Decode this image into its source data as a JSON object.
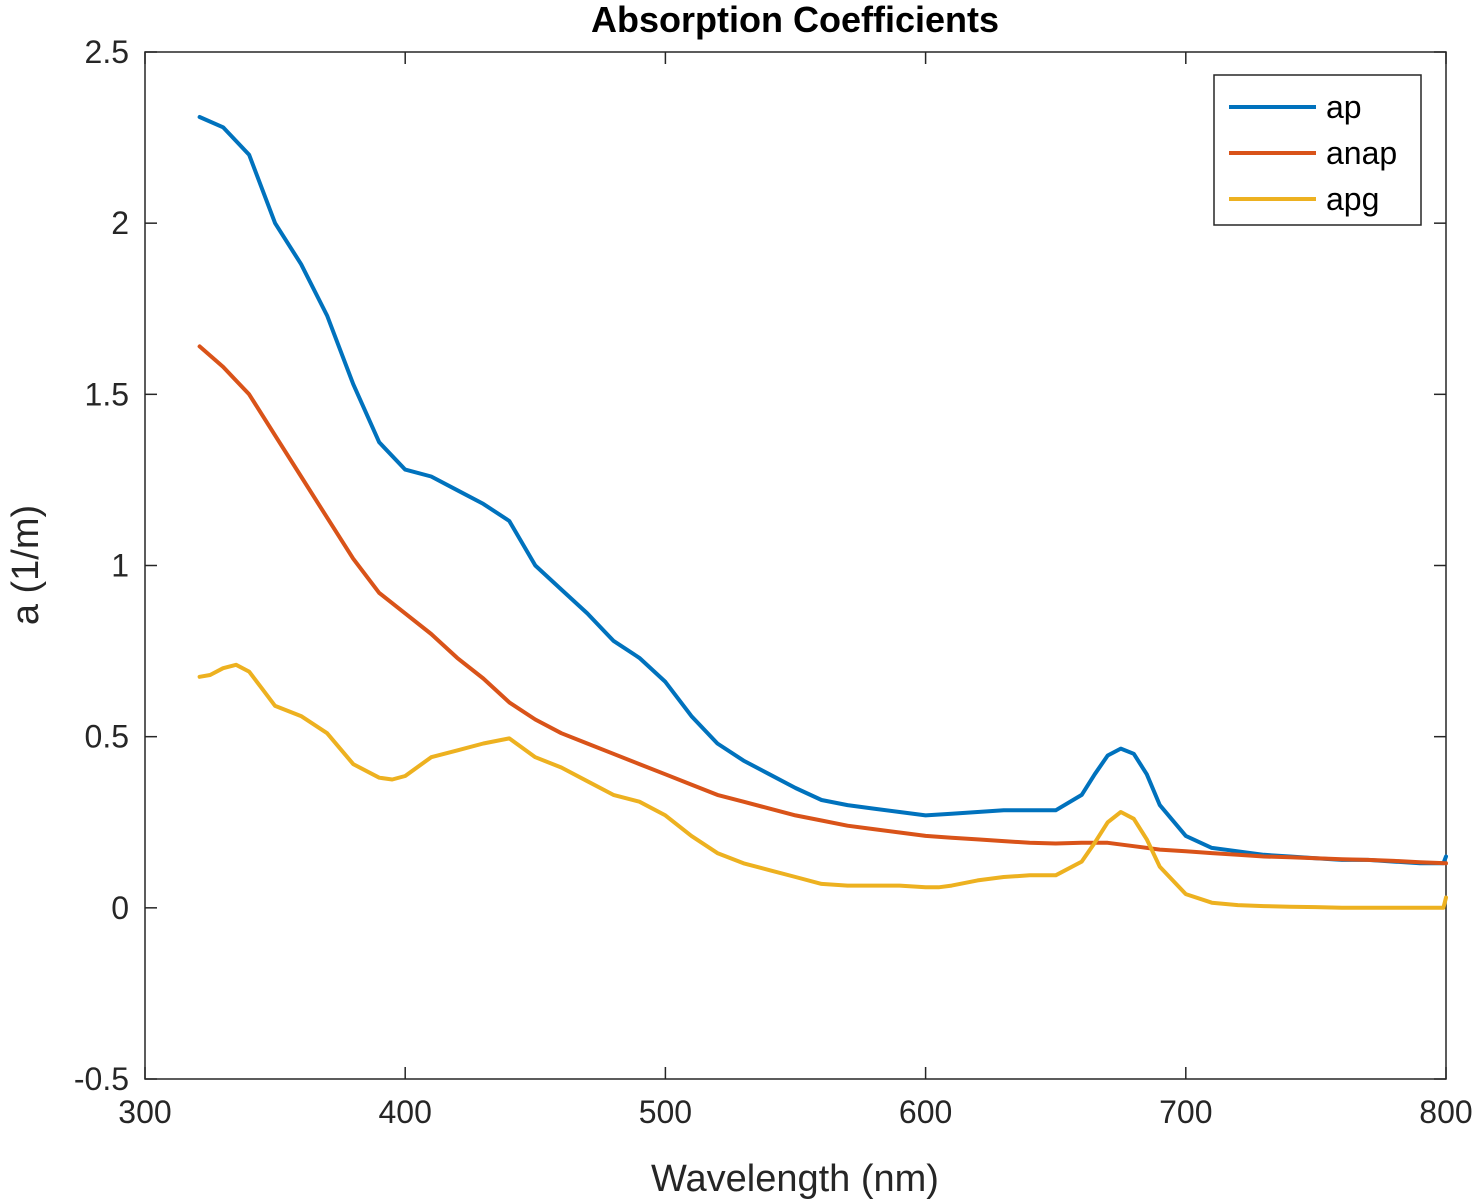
{
  "chart_data": {
    "type": "line",
    "title": "Absorption Coefficients",
    "xlabel": "Wavelength (nm)",
    "ylabel": "a (1/m)",
    "xlim": [
      300,
      800
    ],
    "ylim": [
      -0.5,
      2.5
    ],
    "xticks": [
      "300",
      "400",
      "500",
      "600",
      "700",
      "800"
    ],
    "yticks": [
      "-0.5",
      "0",
      "0.5",
      "1",
      "1.5",
      "2",
      "2.5"
    ],
    "grid": false,
    "legend_position": "top-right",
    "colors": {
      "axis": "#262626",
      "background": "#ffffff"
    },
    "series": [
      {
        "name": "ap",
        "color": "#0072BD",
        "x": [
          321,
          330,
          340,
          350,
          360,
          370,
          380,
          390,
          400,
          410,
          420,
          430,
          440,
          450,
          460,
          470,
          480,
          490,
          500,
          510,
          520,
          530,
          540,
          550,
          560,
          570,
          580,
          590,
          600,
          610,
          620,
          630,
          640,
          650,
          660,
          665,
          670,
          675,
          680,
          685,
          690,
          700,
          710,
          720,
          730,
          740,
          750,
          760,
          770,
          780,
          790,
          799,
          800
        ],
        "y": [
          2.31,
          2.28,
          2.2,
          2.0,
          1.88,
          1.73,
          1.53,
          1.36,
          1.28,
          1.26,
          1.22,
          1.18,
          1.13,
          1.0,
          0.93,
          0.86,
          0.78,
          0.73,
          0.66,
          0.56,
          0.48,
          0.43,
          0.39,
          0.35,
          0.315,
          0.3,
          0.29,
          0.28,
          0.27,
          0.275,
          0.28,
          0.285,
          0.285,
          0.285,
          0.33,
          0.39,
          0.445,
          0.465,
          0.45,
          0.39,
          0.3,
          0.21,
          0.175,
          0.165,
          0.155,
          0.15,
          0.145,
          0.14,
          0.14,
          0.135,
          0.13,
          0.13,
          0.15
        ]
      },
      {
        "name": "anap",
        "color": "#D95319",
        "x": [
          321,
          330,
          340,
          350,
          360,
          370,
          380,
          390,
          400,
          410,
          420,
          430,
          440,
          450,
          460,
          470,
          480,
          490,
          500,
          510,
          520,
          530,
          540,
          550,
          560,
          570,
          580,
          590,
          600,
          610,
          620,
          630,
          640,
          650,
          660,
          670,
          680,
          690,
          700,
          710,
          720,
          730,
          740,
          750,
          760,
          770,
          780,
          790,
          800
        ],
        "y": [
          1.64,
          1.58,
          1.5,
          1.38,
          1.26,
          1.14,
          1.02,
          0.92,
          0.86,
          0.8,
          0.73,
          0.67,
          0.6,
          0.55,
          0.51,
          0.48,
          0.45,
          0.42,
          0.39,
          0.36,
          0.33,
          0.31,
          0.29,
          0.27,
          0.255,
          0.24,
          0.23,
          0.22,
          0.21,
          0.205,
          0.2,
          0.195,
          0.19,
          0.188,
          0.19,
          0.19,
          0.18,
          0.17,
          0.165,
          0.16,
          0.155,
          0.15,
          0.148,
          0.145,
          0.142,
          0.14,
          0.137,
          0.133,
          0.13
        ]
      },
      {
        "name": "apg",
        "color": "#EDB120",
        "x": [
          321,
          325,
          330,
          335,
          340,
          345,
          350,
          360,
          370,
          380,
          390,
          395,
          400,
          410,
          420,
          430,
          440,
          450,
          460,
          470,
          480,
          490,
          500,
          510,
          520,
          530,
          540,
          550,
          560,
          570,
          580,
          590,
          600,
          605,
          610,
          620,
          630,
          640,
          650,
          660,
          665,
          670,
          675,
          680,
          685,
          690,
          700,
          710,
          720,
          730,
          740,
          750,
          760,
          770,
          780,
          790,
          799,
          800
        ],
        "y": [
          0.675,
          0.68,
          0.7,
          0.71,
          0.69,
          0.64,
          0.59,
          0.56,
          0.51,
          0.42,
          0.38,
          0.375,
          0.385,
          0.44,
          0.46,
          0.48,
          0.495,
          0.44,
          0.41,
          0.37,
          0.33,
          0.31,
          0.27,
          0.21,
          0.16,
          0.13,
          0.11,
          0.09,
          0.07,
          0.065,
          0.065,
          0.065,
          0.06,
          0.06,
          0.065,
          0.08,
          0.09,
          0.095,
          0.095,
          0.135,
          0.19,
          0.25,
          0.28,
          0.26,
          0.2,
          0.12,
          0.04,
          0.015,
          0.008,
          0.005,
          0.003,
          0.002,
          0.0,
          0.0,
          0.0,
          0.0,
          0.0,
          0.03
        ]
      }
    ]
  }
}
